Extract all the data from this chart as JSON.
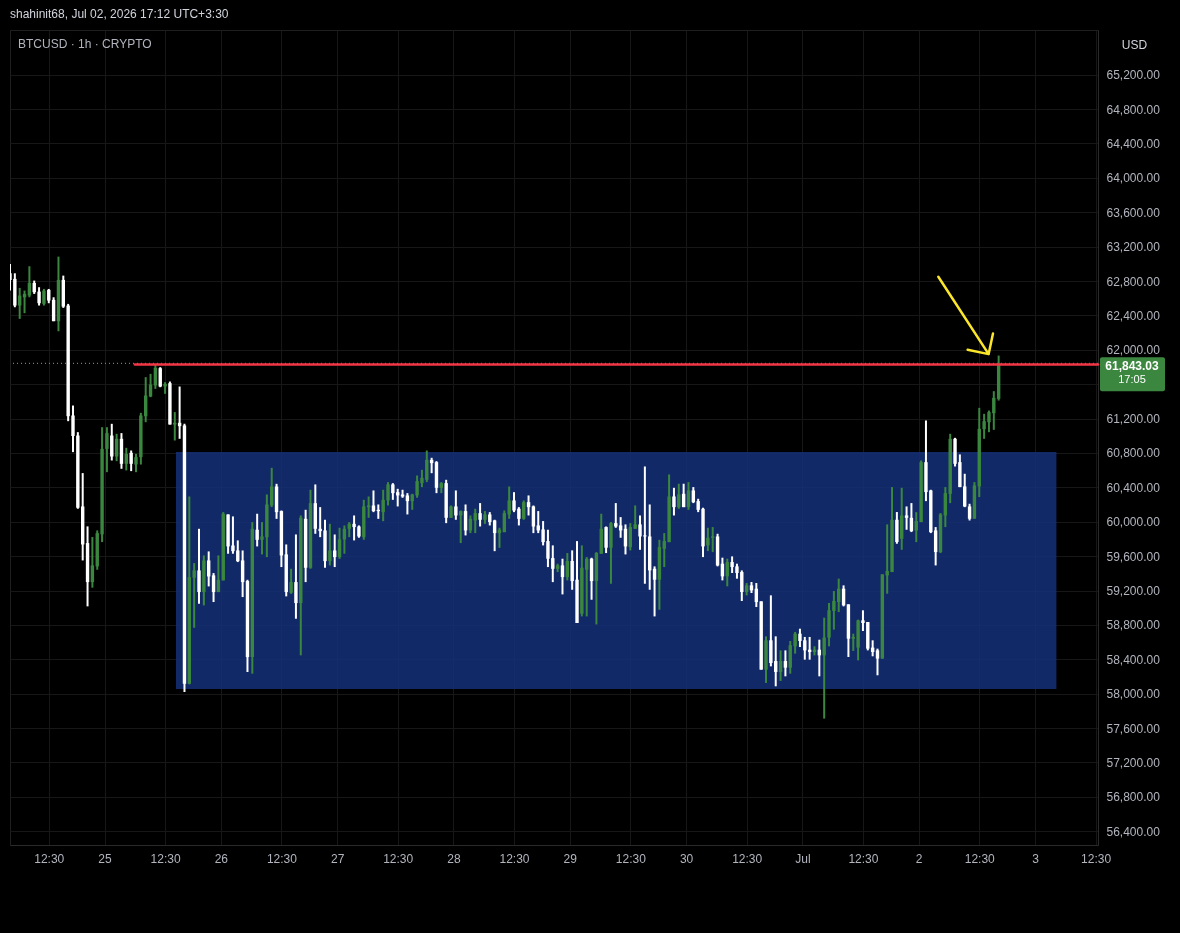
{
  "chart_data": {
    "type": "candlestick",
    "title": "BTCUSD · 1h · CRYPTO",
    "ylabel": "USD",
    "annotations": [
      "shahinit68, Jul 02, 2026 17:12 UTC+3:30",
      "61,843.03",
      "17:05"
    ],
    "xlim": [
      "2026-06-24T04:30",
      "2026-07-03T13:00"
    ],
    "xticks": [
      {
        "value": "2026-06-24T12:30",
        "label": "12:30"
      },
      {
        "value": "2026-06-25T00:00",
        "label": "25"
      },
      {
        "value": "2026-06-25T12:30",
        "label": "12:30"
      },
      {
        "value": "2026-06-26T00:00",
        "label": "26"
      },
      {
        "value": "2026-06-26T12:30",
        "label": "12:30"
      },
      {
        "value": "2026-06-27T00:00",
        "label": "27"
      },
      {
        "value": "2026-06-27T12:30",
        "label": "12:30"
      },
      {
        "value": "2026-06-28T00:00",
        "label": "28"
      },
      {
        "value": "2026-06-28T12:30",
        "label": "12:30"
      },
      {
        "value": "2026-06-29T00:00",
        "label": "29"
      },
      {
        "value": "2026-06-29T12:30",
        "label": "12:30"
      },
      {
        "value": "2026-06-30T00:00",
        "label": "30"
      },
      {
        "value": "2026-06-30T12:30",
        "label": "12:30"
      },
      {
        "value": "2026-07-01T00:00",
        "label": "Jul"
      },
      {
        "value": "2026-07-01T12:30",
        "label": "12:30"
      },
      {
        "value": "2026-07-02T00:00",
        "label": "2"
      },
      {
        "value": "2026-07-02T12:30",
        "label": "12:30"
      },
      {
        "value": "2026-07-03T00:00",
        "label": "3"
      },
      {
        "value": "2026-07-03T12:30",
        "label": "12:30"
      }
    ],
    "ylim": [
      56240,
      65720
    ],
    "yticks": [
      {
        "value": 56400,
        "label": "56,400.00"
      },
      {
        "value": 56800,
        "label": "56,800.00"
      },
      {
        "value": 57200,
        "label": "57,200.00"
      },
      {
        "value": 57600,
        "label": "57,600.00"
      },
      {
        "value": 58000,
        "label": "58,000.00"
      },
      {
        "value": 58400,
        "label": "58,400.00"
      },
      {
        "value": 58800,
        "label": "58,800.00"
      },
      {
        "value": 59200,
        "label": "59,200.00"
      },
      {
        "value": 59600,
        "label": "59,600.00"
      },
      {
        "value": 60000,
        "label": "60,000.00"
      },
      {
        "value": 60400,
        "label": "60,400.00"
      },
      {
        "value": 60800,
        "label": "60,800.00"
      },
      {
        "value": 61200,
        "label": "61,200.00"
      },
      {
        "value": 61600,
        "label": null
      },
      {
        "value": 62000,
        "label": "62,000.00"
      },
      {
        "value": 62400,
        "label": "62,400.00"
      },
      {
        "value": 62800,
        "label": "62,800.00"
      },
      {
        "value": 63200,
        "label": "63,200.00"
      },
      {
        "value": 63600,
        "label": "63,600.00"
      },
      {
        "value": 64000,
        "label": "64,000.00"
      },
      {
        "value": 64400,
        "label": "64,400.00"
      },
      {
        "value": 64800,
        "label": "64,800.00"
      },
      {
        "value": 65200,
        "label": "65,200.00"
      }
    ],
    "grid": true,
    "ref_lines": [
      {
        "axis": "y",
        "value": 61843.03,
        "color": "#9598a1",
        "line_style": "dotted"
      }
    ],
    "series": [
      {
        "type": "line",
        "color": "#15307a",
        "x": [
          "2026-06-25T14:45",
          "2026-07-03T04:25"
        ],
        "values": [
          null,
          null
        ],
        "lower": [
          58055,
          58055
        ],
        "upper": [
          60810,
          60810
        ]
      },
      {
        "x": [
          "2026-06-24T04:30",
          "2026-06-24T05:30",
          "2026-06-24T06:30",
          "2026-06-24T07:30",
          "2026-06-24T08:30",
          "2026-06-24T09:30",
          "2026-06-24T10:30",
          "2026-06-24T11:30",
          "2026-06-24T12:30",
          "2026-06-24T13:30",
          "2026-06-24T14:30",
          "2026-06-24T15:30",
          "2026-06-24T16:30",
          "2026-06-24T17:30",
          "2026-06-24T18:30",
          "2026-06-24T19:30",
          "2026-06-24T20:30",
          "2026-06-24T21:30",
          "2026-06-24T22:30",
          "2026-06-24T23:30",
          "2026-06-25T00:30",
          "2026-06-25T01:30",
          "2026-06-25T02:30",
          "2026-06-25T03:30",
          "2026-06-25T04:30",
          "2026-06-25T05:30",
          "2026-06-25T06:30",
          "2026-06-25T07:30",
          "2026-06-25T08:30",
          "2026-06-25T09:30",
          "2026-06-25T10:30",
          "2026-06-25T11:30",
          "2026-06-25T12:30",
          "2026-06-25T13:30",
          "2026-06-25T14:30",
          "2026-06-25T15:30",
          "2026-06-25T16:30",
          "2026-06-25T17:30",
          "2026-06-25T18:30",
          "2026-06-25T19:30",
          "2026-06-25T20:30",
          "2026-06-25T21:30",
          "2026-06-25T22:30",
          "2026-06-25T23:30",
          "2026-06-26T00:30",
          "2026-06-26T01:30",
          "2026-06-26T02:30",
          "2026-06-26T03:30",
          "2026-06-26T04:30",
          "2026-06-26T05:30",
          "2026-06-26T06:30",
          "2026-06-26T07:30",
          "2026-06-26T08:30",
          "2026-06-26T09:30",
          "2026-06-26T10:30",
          "2026-06-26T11:30",
          "2026-06-26T12:30",
          "2026-06-26T13:30",
          "2026-06-26T14:30",
          "2026-06-26T15:30",
          "2026-06-26T16:30",
          "2026-06-26T17:30",
          "2026-06-26T18:30",
          "2026-06-26T19:30",
          "2026-06-26T20:30",
          "2026-06-26T21:30",
          "2026-06-26T22:30",
          "2026-06-26T23:30",
          "2026-06-27T00:30",
          "2026-06-27T01:30",
          "2026-06-27T02:30",
          "2026-06-27T03:30",
          "2026-06-27T04:30",
          "2026-06-27T05:30",
          "2026-06-27T06:30",
          "2026-06-27T07:30",
          "2026-06-27T08:30",
          "2026-06-27T09:30",
          "2026-06-27T10:30",
          "2026-06-27T11:30",
          "2026-06-27T12:30",
          "2026-06-27T13:30",
          "2026-06-27T14:30",
          "2026-06-27T15:30",
          "2026-06-27T16:30",
          "2026-06-27T17:30",
          "2026-06-27T18:30",
          "2026-06-27T19:30",
          "2026-06-27T20:30",
          "2026-06-27T21:30",
          "2026-06-27T22:30",
          "2026-06-27T23:30",
          "2026-06-28T00:30",
          "2026-06-28T01:30",
          "2026-06-28T02:30",
          "2026-06-28T03:30",
          "2026-06-28T04:30",
          "2026-06-28T05:30",
          "2026-06-28T06:30",
          "2026-06-28T07:30",
          "2026-06-28T08:30",
          "2026-06-28T09:30",
          "2026-06-28T10:30",
          "2026-06-28T11:30",
          "2026-06-28T12:30",
          "2026-06-28T13:30",
          "2026-06-28T14:30",
          "2026-06-28T15:30",
          "2026-06-28T16:30",
          "2026-06-28T17:30",
          "2026-06-28T18:30",
          "2026-06-28T19:30",
          "2026-06-28T20:30",
          "2026-06-28T21:30",
          "2026-06-28T22:30",
          "2026-06-28T23:30",
          "2026-06-29T00:30",
          "2026-06-29T01:30",
          "2026-06-29T02:30",
          "2026-06-29T03:30",
          "2026-06-29T04:30",
          "2026-06-29T05:30",
          "2026-06-29T06:30",
          "2026-06-29T07:30",
          "2026-06-29T08:30",
          "2026-06-29T09:30",
          "2026-06-29T10:30",
          "2026-06-29T11:30",
          "2026-06-29T12:30",
          "2026-06-29T13:30",
          "2026-06-29T14:30",
          "2026-06-29T15:30",
          "2026-06-29T16:30",
          "2026-06-29T17:30",
          "2026-06-29T18:30",
          "2026-06-29T19:30",
          "2026-06-29T20:30",
          "2026-06-29T21:30",
          "2026-06-29T22:30",
          "2026-06-29T23:30",
          "2026-06-30T00:30",
          "2026-06-30T01:30",
          "2026-06-30T02:30",
          "2026-06-30T03:30",
          "2026-06-30T04:30",
          "2026-06-30T05:30",
          "2026-06-30T06:30",
          "2026-06-30T07:30",
          "2026-06-30T08:30",
          "2026-06-30T09:30",
          "2026-06-30T10:30",
          "2026-06-30T11:30",
          "2026-06-30T12:30",
          "2026-06-30T13:30",
          "2026-06-30T14:30",
          "2026-06-30T15:30",
          "2026-06-30T16:30",
          "2026-06-30T17:30",
          "2026-06-30T18:30",
          "2026-06-30T19:30",
          "2026-06-30T20:30",
          "2026-06-30T21:30",
          "2026-06-30T22:30",
          "2026-06-30T23:30",
          "2026-07-01T00:30",
          "2026-07-01T01:30",
          "2026-07-01T02:30",
          "2026-07-01T03:30",
          "2026-07-01T04:30",
          "2026-07-01T05:30",
          "2026-07-01T06:30",
          "2026-07-01T07:30",
          "2026-07-01T08:30",
          "2026-07-01T09:30",
          "2026-07-01T10:30",
          "2026-07-01T11:30",
          "2026-07-01T12:30",
          "2026-07-01T13:30",
          "2026-07-01T14:30",
          "2026-07-01T15:30",
          "2026-07-01T16:30",
          "2026-07-01T17:30",
          "2026-07-01T18:30",
          "2026-07-01T19:30",
          "2026-07-01T20:30",
          "2026-07-01T21:30",
          "2026-07-01T22:30",
          "2026-07-01T23:30",
          "2026-07-02T00:30",
          "2026-07-02T01:30",
          "2026-07-02T02:30",
          "2026-07-02T03:30",
          "2026-07-02T04:30",
          "2026-07-02T05:30",
          "2026-07-02T06:30",
          "2026-07-02T07:30",
          "2026-07-02T08:30",
          "2026-07-02T09:30",
          "2026-07-02T10:30",
          "2026-07-02T11:30",
          "2026-07-02T12:30",
          "2026-07-02T13:30",
          "2026-07-02T14:30",
          "2026-07-02T15:30",
          "2026-07-02T16:30"
        ],
        "ohlc": [
          [
            62890,
            62999,
            62689,
            62813
          ],
          [
            62825,
            62890,
            62495,
            62515
          ],
          [
            62515,
            62720,
            62360,
            62631
          ],
          [
            62611,
            62689,
            62426,
            62650
          ],
          [
            62631,
            62972,
            62611,
            62778
          ],
          [
            62778,
            62805,
            62650,
            62670
          ],
          [
            62677,
            62728,
            62515,
            62542
          ],
          [
            62534,
            62708,
            62515,
            62689
          ],
          [
            62697,
            62708,
            62542,
            62573
          ],
          [
            62581,
            62611,
            62333,
            62333
          ],
          [
            62333,
            63084,
            62216,
            62813
          ],
          [
            62813,
            62863,
            62488,
            62503
          ],
          [
            62515,
            62534,
            61170,
            61228
          ],
          [
            61236,
            61352,
            60810,
            60996
          ],
          [
            61003,
            61042,
            60151,
            60163
          ],
          [
            60178,
            60566,
            59550,
            59736
          ],
          [
            59752,
            59946,
            59016,
            59298
          ],
          [
            59298,
            59822,
            59233,
            59492
          ],
          [
            59481,
            59899,
            59442,
            59868
          ],
          [
            59853,
            61100,
            59764,
            60848
          ],
          [
            60848,
            61100,
            60577,
            61031
          ],
          [
            61003,
            61139,
            60713,
            60759
          ],
          [
            60759,
            61023,
            60705,
            60965
          ],
          [
            60965,
            61031,
            60616,
            60674
          ],
          [
            60674,
            60860,
            60597,
            60790
          ],
          [
            60802,
            60829,
            60589,
            60674
          ],
          [
            60666,
            60790,
            60577,
            60752
          ],
          [
            60752,
            61267,
            60666,
            61236
          ],
          [
            61228,
            61682,
            61158,
            61468
          ],
          [
            61457,
            61720,
            61449,
            61596
          ],
          [
            61585,
            61829,
            61546,
            61790
          ],
          [
            61786,
            61798,
            61565,
            61573
          ],
          [
            61573,
            61623,
            61488,
            61604
          ],
          [
            61612,
            61631,
            61131,
            61131
          ],
          [
            61131,
            61275,
            60945,
            61151
          ],
          [
            61151,
            61573,
            60965,
            61112
          ],
          [
            61120,
            61139,
            58019,
            58117
          ],
          [
            58116,
            60294,
            58109,
            59356
          ],
          [
            59349,
            59519,
            58767,
            59434
          ],
          [
            59434,
            59918,
            59046,
            59182
          ],
          [
            59182,
            59608,
            59027,
            59550
          ],
          [
            59550,
            59655,
            59248,
            59364
          ],
          [
            59376,
            59403,
            59066,
            59182
          ],
          [
            59182,
            59608,
            59182,
            59325
          ],
          [
            59318,
            60112,
            59318,
            60093
          ],
          [
            60085,
            60085,
            59628,
            59713
          ],
          [
            59724,
            60062,
            59628,
            59658
          ],
          [
            59666,
            59783,
            59531,
            59542
          ],
          [
            59550,
            59666,
            59124,
            59298
          ],
          [
            59310,
            59325,
            58252,
            58426
          ],
          [
            58426,
            59996,
            58233,
            59918
          ],
          [
            59907,
            60093,
            59713,
            59790
          ],
          [
            59790,
            59996,
            59620,
            59829
          ],
          [
            59821,
            60317,
            59589,
            60201
          ],
          [
            60189,
            60627,
            60170,
            60410
          ],
          [
            60410,
            60441,
            60034,
            60112
          ],
          [
            60124,
            60131,
            59473,
            59608
          ],
          [
            59620,
            59736,
            59132,
            59182
          ],
          [
            59174,
            59453,
            59162,
            59298
          ],
          [
            59298,
            59852,
            58872,
            59054
          ],
          [
            59054,
            60073,
            58446,
            60046
          ],
          [
            60034,
            60139,
            59298,
            59465
          ],
          [
            59465,
            60372,
            59453,
            60216
          ],
          [
            60216,
            60434,
            59860,
            59918
          ],
          [
            59918,
            60170,
            59821,
            59891
          ],
          [
            59899,
            60023,
            59465,
            59542
          ],
          [
            59542,
            59976,
            59492,
            59666
          ],
          [
            59666,
            59852,
            59473,
            59589
          ],
          [
            59589,
            59930,
            59569,
            59794
          ],
          [
            59794,
            59957,
            59628,
            59918
          ],
          [
            59918,
            59996,
            59821,
            59976
          ],
          [
            59976,
            60073,
            59783,
            59938
          ],
          [
            59945,
            59957,
            59814,
            59829
          ],
          [
            59821,
            60255,
            59790,
            60178
          ],
          [
            60170,
            60294,
            60046,
            60189
          ],
          [
            60189,
            60364,
            60112,
            60124
          ],
          [
            60139,
            60201,
            60034,
            60124
          ],
          [
            60112,
            60372,
            60007,
            60255
          ],
          [
            60248,
            60461,
            60189,
            60434
          ],
          [
            60434,
            60449,
            60255,
            60333
          ],
          [
            60344,
            60383,
            60178,
            60306
          ],
          [
            60317,
            60372,
            60279,
            60294
          ],
          [
            60306,
            60333,
            60085,
            60240
          ],
          [
            60240,
            60325,
            60139,
            60317
          ],
          [
            60306,
            60538,
            60279,
            60472
          ],
          [
            60449,
            60604,
            60403,
            60511
          ],
          [
            60488,
            60829,
            60461,
            60720
          ],
          [
            60720,
            60744,
            60565,
            60682
          ],
          [
            60693,
            60705,
            60333,
            60395
          ],
          [
            60395,
            60461,
            60333,
            60449
          ],
          [
            60449,
            60488,
            59984,
            60046
          ],
          [
            60046,
            60189,
            60046,
            60178
          ],
          [
            60178,
            60364,
            60023,
            60073
          ],
          [
            60073,
            60131,
            59752,
            60124
          ],
          [
            60124,
            60201,
            59841,
            59899
          ],
          [
            59899,
            60073,
            59868,
            60034
          ],
          [
            60015,
            60151,
            59868,
            60100
          ],
          [
            60100,
            60217,
            59945,
            60023
          ],
          [
            60023,
            60124,
            59976,
            60085
          ],
          [
            60085,
            60112,
            59957,
            59996
          ],
          [
            60015,
            60023,
            59658,
            59868
          ],
          [
            59868,
            59930,
            59697,
            59907
          ],
          [
            59879,
            60131,
            59879,
            60100
          ],
          [
            60085,
            60410,
            60034,
            60248
          ],
          [
            60248,
            60344,
            60112,
            60131
          ],
          [
            60151,
            60170,
            59957,
            60034
          ],
          [
            60034,
            60248,
            60023,
            60228
          ],
          [
            60228,
            60306,
            60073,
            60170
          ],
          [
            60178,
            60189,
            59868,
            59945
          ],
          [
            59957,
            60124,
            59868,
            59899
          ],
          [
            59911,
            60008,
            59725,
            59763
          ],
          [
            59775,
            59907,
            59473,
            59570
          ],
          [
            59577,
            59725,
            59298,
            59453
          ],
          [
            59453,
            59512,
            59415,
            59492
          ],
          [
            59492,
            59570,
            59155,
            59356
          ],
          [
            59356,
            59636,
            59318,
            59543
          ],
          [
            59543,
            59667,
            59209,
            59310
          ],
          [
            59326,
            59775,
            58822,
            58822
          ],
          [
            58930,
            59725,
            58899,
            59465
          ],
          [
            59442,
            59589,
            58899,
            59570
          ],
          [
            59570,
            59581,
            59093,
            59310
          ],
          [
            59310,
            59647,
            58806,
            59636
          ],
          [
            59628,
            60093,
            59628,
            59918
          ],
          [
            59938,
            59945,
            59636,
            59698
          ],
          [
            59698,
            59996,
            59279,
            59984
          ],
          [
            59984,
            60217,
            59930,
            59945
          ],
          [
            59957,
            60054,
            59814,
            59899
          ],
          [
            59918,
            59969,
            59620,
            59713
          ],
          [
            59705,
            59984,
            59667,
            59938
          ],
          [
            59918,
            60190,
            59918,
            59969
          ],
          [
            59969,
            60073,
            59674,
            59829
          ],
          [
            59841,
            60643,
            59279,
            59829
          ],
          [
            59829,
            60201,
            59209,
            59434
          ],
          [
            59453,
            59481,
            58899,
            59326
          ],
          [
            59326,
            59790,
            58977,
            59705
          ],
          [
            59686,
            59868,
            59473,
            59775
          ],
          [
            59763,
            60550,
            59763,
            60294
          ],
          [
            60294,
            60395,
            60073,
            60170
          ],
          [
            60170,
            60442,
            60151,
            60318
          ],
          [
            60325,
            60442,
            60170,
            60170
          ],
          [
            60170,
            60461,
            60139,
            60364
          ],
          [
            60364,
            60403,
            60217,
            60228
          ],
          [
            60240,
            60267,
            60112,
            60139
          ],
          [
            60151,
            60163,
            59589,
            59713
          ],
          [
            59725,
            59930,
            59659,
            59814
          ],
          [
            59814,
            59938,
            59647,
            59829
          ],
          [
            59829,
            59860,
            59481,
            59492
          ],
          [
            59512,
            59582,
            59318,
            59365
          ],
          [
            59365,
            59570,
            59249,
            59531
          ],
          [
            59531,
            59597,
            59404,
            59473
          ],
          [
            59481,
            59512,
            59338,
            59404
          ],
          [
            59415,
            59434,
            59078,
            59183
          ],
          [
            59183,
            59287,
            59144,
            59260
          ],
          [
            59260,
            59299,
            59171,
            59202
          ],
          [
            59221,
            59287,
            59008,
            59066
          ],
          [
            59074,
            59074,
            58280,
            58280
          ],
          [
            58280,
            58667,
            58125,
            58621
          ],
          [
            58621,
            59144,
            58318,
            58357
          ],
          [
            58380,
            58667,
            58086,
            58253
          ],
          [
            58253,
            58504,
            58148,
            58380
          ],
          [
            58380,
            58504,
            58202,
            58303
          ],
          [
            58303,
            58613,
            58233,
            58563
          ],
          [
            58551,
            58718,
            58466,
            58698
          ],
          [
            58698,
            58756,
            58543,
            58613
          ],
          [
            58621,
            58660,
            58396,
            58504
          ],
          [
            58512,
            58660,
            58396,
            58485
          ],
          [
            58485,
            58551,
            58446,
            58512
          ],
          [
            58512,
            58628,
            58202,
            58446
          ],
          [
            58446,
            58884,
            57710,
            58652
          ],
          [
            58652,
            59055,
            58551,
            58970
          ],
          [
            58962,
            59194,
            58745,
            59078
          ],
          [
            59066,
            59338,
            58950,
            59221
          ],
          [
            59221,
            59260,
            59016,
            59028
          ],
          [
            59039,
            59039,
            58427,
            58640
          ],
          [
            58640,
            58698,
            58497,
            58660
          ],
          [
            58536,
            58861,
            58388,
            58853
          ],
          [
            58853,
            58970,
            58729,
            58822
          ],
          [
            58834,
            58834,
            58504,
            58524
          ],
          [
            58536,
            58621,
            58435,
            58485
          ],
          [
            58504,
            58524,
            58214,
            58408
          ],
          [
            58408,
            59388,
            58408,
            59388
          ],
          [
            59376,
            59969,
            59163,
            59427
          ],
          [
            59415,
            60403,
            59415,
            60023
          ],
          [
            60023,
            60113,
            59744,
            59764
          ],
          [
            59802,
            60395,
            59674,
            60073
          ],
          [
            60073,
            60178,
            59907,
            60046
          ],
          [
            60046,
            60217,
            59880,
            59891
          ],
          [
            59899,
            60112,
            59763,
            60008
          ],
          [
            59996,
            60713,
            59996,
            60693
          ],
          [
            60693,
            61178,
            60240,
            60345
          ],
          [
            60364,
            60372,
            59868,
            59880
          ],
          [
            59899,
            59938,
            59492,
            59647
          ],
          [
            59647,
            60101,
            59636,
            60085
          ],
          [
            60073,
            60403,
            59938,
            60333
          ],
          [
            60325,
            61023,
            60217,
            60965
          ],
          [
            60965,
            60976,
            60643,
            60674
          ],
          [
            60693,
            60783,
            60403,
            60403
          ],
          [
            60411,
            60558,
            60170,
            60178
          ],
          [
            60178,
            60209,
            60015,
            60035
          ],
          [
            60035,
            60461,
            60035,
            60422
          ],
          [
            60411,
            61325,
            60287,
            61081
          ],
          [
            61077,
            61255,
            60965,
            61170
          ],
          [
            61158,
            61294,
            61042,
            61275
          ],
          [
            61263,
            61519,
            61069,
            61441
          ],
          [
            61430,
            61933,
            61410,
            61843.03
          ]
        ],
        "colors": [
          "#ffffff",
          "#ffffff",
          "#3b873f",
          "#3b873f",
          "#3b873f",
          "#ffffff",
          "#ffffff",
          "#3b873f",
          "#ffffff",
          "#ffffff",
          "#3b873f",
          "#ffffff",
          "#ffffff",
          "#ffffff",
          "#ffffff",
          "#ffffff",
          "#ffffff",
          "#3b873f",
          "#3b873f",
          "#3b873f",
          "#3b873f",
          "#ffffff",
          "#3b873f",
          "#ffffff",
          "#3b873f",
          "#ffffff",
          "#3b873f",
          "#3b873f",
          "#3b873f",
          "#3b873f",
          "#3b873f",
          "#ffffff",
          "#3b873f",
          "#ffffff",
          "#3b873f",
          "#ffffff",
          "#ffffff",
          "#3b873f",
          "#3b873f",
          "#ffffff",
          "#3b873f",
          "#ffffff",
          "#ffffff",
          "#3b873f",
          "#3b873f",
          "#ffffff",
          "#ffffff",
          "#ffffff",
          "#ffffff",
          "#ffffff",
          "#3b873f",
          "#ffffff",
          "#3b873f",
          "#3b873f",
          "#3b873f",
          "#ffffff",
          "#ffffff",
          "#ffffff",
          "#3b873f",
          "#ffffff",
          "#3b873f",
          "#ffffff",
          "#3b873f",
          "#ffffff",
          "#ffffff",
          "#ffffff",
          "#3b873f",
          "#ffffff",
          "#3b873f",
          "#3b873f",
          "#3b873f",
          "#ffffff",
          "#ffffff",
          "#3b873f",
          "#3b873f",
          "#ffffff",
          "#ffffff",
          "#3b873f",
          "#3b873f",
          "#ffffff",
          "#ffffff",
          "#ffffff",
          "#ffffff",
          "#3b873f",
          "#3b873f",
          "#3b873f",
          "#3b873f",
          "#ffffff",
          "#ffffff",
          "#3b873f",
          "#ffffff",
          "#3b873f",
          "#ffffff",
          "#3b873f",
          "#ffffff",
          "#3b873f",
          "#3b873f",
          "#ffffff",
          "#3b873f",
          "#ffffff",
          "#ffffff",
          "#3b873f",
          "#3b873f",
          "#3b873f",
          "#ffffff",
          "#ffffff",
          "#3b873f",
          "#ffffff",
          "#ffffff",
          "#ffffff",
          "#ffffff",
          "#ffffff",
          "#ffffff",
          "#3b873f",
          "#ffffff",
          "#3b873f",
          "#ffffff",
          "#ffffff",
          "#3b873f",
          "#3b873f",
          "#ffffff",
          "#3b873f",
          "#3b873f",
          "#ffffff",
          "#3b873f",
          "#ffffff",
          "#ffffff",
          "#ffffff",
          "#3b873f",
          "#3b873f",
          "#ffffff",
          "#ffffff",
          "#ffffff",
          "#ffffff",
          "#3b873f",
          "#3b873f",
          "#3b873f",
          "#ffffff",
          "#3b873f",
          "#ffffff",
          "#3b873f",
          "#ffffff",
          "#ffffff",
          "#ffffff",
          "#3b873f",
          "#3b873f",
          "#ffffff",
          "#ffffff",
          "#3b873f",
          "#ffffff",
          "#ffffff",
          "#ffffff",
          "#3b873f",
          "#ffffff",
          "#ffffff",
          "#ffffff",
          "#3b873f",
          "#ffffff",
          "#ffffff",
          "#3b873f",
          "#ffffff",
          "#3b873f",
          "#3b873f",
          "#ffffff",
          "#ffffff",
          "#ffffff",
          "#3b873f",
          "#ffffff",
          "#3b873f",
          "#3b873f",
          "#3b873f",
          "#3b873f",
          "#ffffff",
          "#ffffff",
          "#3b873f",
          "#3b873f",
          "#ffffff",
          "#ffffff",
          "#ffffff",
          "#ffffff",
          "#3b873f",
          "#3b873f",
          "#3b873f",
          "#ffffff",
          "#3b873f",
          "#ffffff",
          "#ffffff",
          "#3b873f",
          "#3b873f",
          "#ffffff",
          "#ffffff",
          "#ffffff",
          "#3b873f",
          "#3b873f",
          "#3b873f",
          "#ffffff",
          "#ffffff",
          "#ffffff",
          "#ffffff",
          "#3b873f",
          "#3b873f",
          "#3b873f",
          "#3b873f",
          "#3b873f",
          "#3b873f"
        ]
      },
      {
        "type": "line",
        "color": "#f23645",
        "x": [
          "2026-06-25T06:15",
          "2026-07-03T13:00"
        ],
        "values": [
          61830,
          61830
        ]
      },
      {
        "type": "line",
        "color": "#fbe62c",
        "x": [
          "2026-07-02T04:03",
          "2026-07-02T14:26",
          "2026-07-02T10:06",
          "2026-07-02T14:26",
          "2026-07-02T15:20"
        ],
        "values": [
          62850,
          61950,
          62000,
          61950,
          62190
        ]
      }
    ]
  }
}
